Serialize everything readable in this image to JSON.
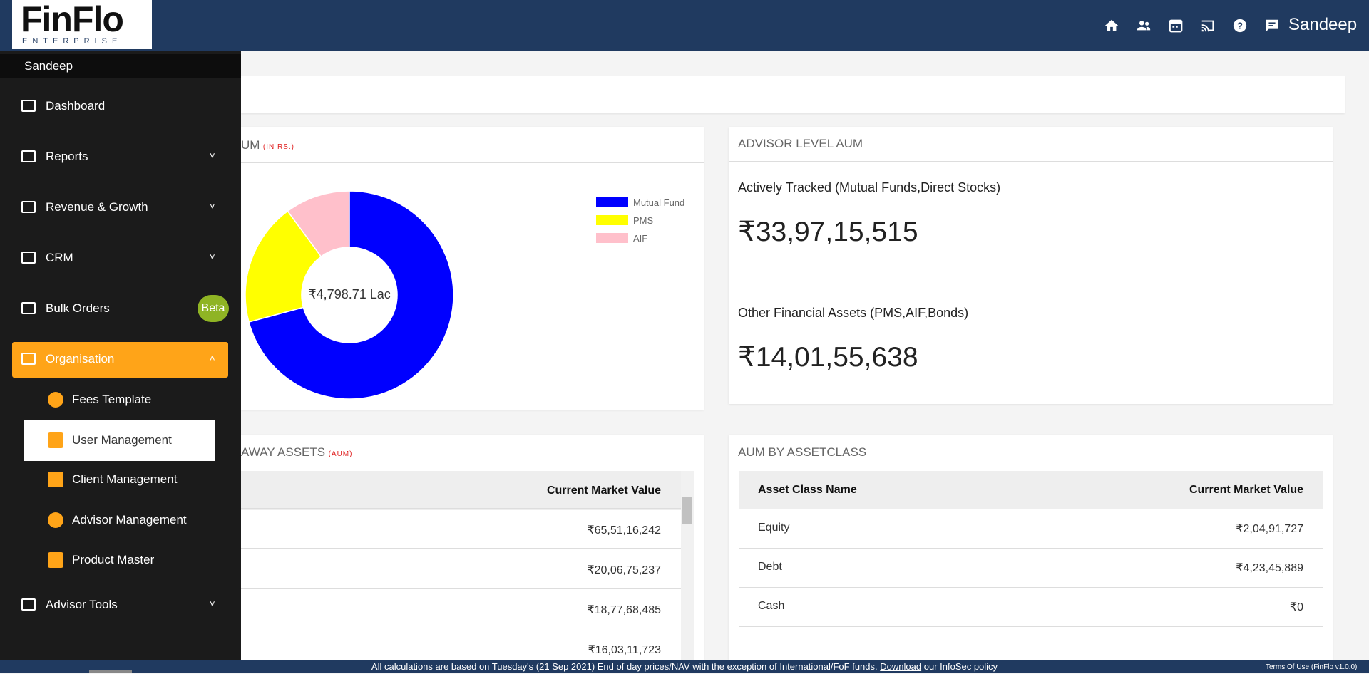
{
  "header": {
    "logo": "FinFlo",
    "logo_sub": "ENTERPRISE",
    "user": "Sandeep"
  },
  "sidebar": {
    "user": "Sandeep",
    "items": [
      "Dashboard",
      "Reports",
      "Revenue & Growth",
      "CRM",
      "Bulk Orders",
      "Organisation",
      "Advisor Tools"
    ],
    "badge": "Beta",
    "subitems": [
      "Fees Template",
      "User Management",
      "Client Management",
      "Advisor Management",
      "Product Master"
    ]
  },
  "chart_data": {
    "type": "pie",
    "title": "UM",
    "title_note": "(IN RS.)",
    "center_label": "₹4,798.71 Lac",
    "categories": [
      "Mutual Fund",
      "PMS",
      "AIF"
    ],
    "values": [
      70.8,
      19.1,
      10.1
    ],
    "colors": [
      "#0000ff",
      "#ffff00",
      "#ffc0cb"
    ]
  },
  "advisor": {
    "title": "ADVISOR LEVEL AUM",
    "tracked_label": "Actively Tracked (Mutual Funds,Direct Stocks)",
    "tracked_value": "₹33,97,15,515",
    "other_label": "Other Financial Assets (PMS,AIF,Bonds)",
    "other_value": "₹14,01,55,638"
  },
  "held_away": {
    "title": "AWAY ASSETS",
    "title_note": "(AUM)",
    "column": "Current Market Value",
    "values": [
      "₹65,51,16,242",
      "₹20,06,75,237",
      "₹18,77,68,485",
      "₹16,03,11,723"
    ]
  },
  "assetclass": {
    "title": "AUM BY ASSETCLASS",
    "columns": [
      "Asset Class Name",
      "Current Market Value"
    ],
    "rows": [
      [
        "Equity",
        "₹2,04,91,727"
      ],
      [
        "Debt",
        "₹4,23,45,889"
      ],
      [
        "Cash",
        "₹0"
      ]
    ]
  },
  "footer": {
    "text": "All calculations are based on Tuesday's (21 Sep 2021) End of day prices/NAV with the exception of International/FoF funds.",
    "link": "Download",
    "text_after": "our InfoSec policy",
    "terms": "Terms Of Use (FinFlo v1.0.0)"
  }
}
